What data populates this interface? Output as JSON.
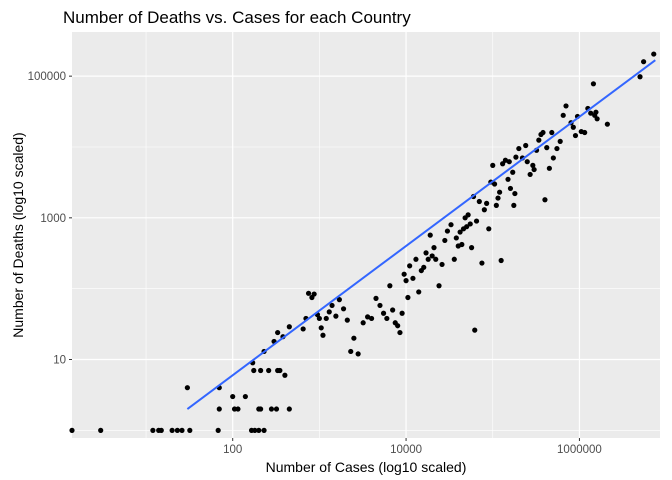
{
  "chart_data": {
    "type": "scatter",
    "title": "Number of Deaths vs. Cases for each Country",
    "xlabel": "Number of Cases (log10 scaled)",
    "ylabel": "Number of Deaths (log10 scaled)",
    "x_scale": "log10",
    "y_scale": "log10",
    "xlim": [
      1.4,
      8500000
    ],
    "ylim": [
      0.78,
      420000
    ],
    "x_ticks": [
      {
        "value": 100,
        "label": "100"
      },
      {
        "value": 10000,
        "label": "10000"
      },
      {
        "value": 1000000,
        "label": "1000000"
      }
    ],
    "y_ticks": [
      {
        "value": 10,
        "label": "10"
      },
      {
        "value": 1000,
        "label": "1000"
      },
      {
        "value": 100000,
        "label": "100000"
      }
    ],
    "grid": true,
    "background": "#EBEBEB",
    "point_color": "#000000",
    "fit_line_color": "#3366FF",
    "fit_line": {
      "x": [
        30,
        7500000
      ],
      "y": [
        2.0,
        168000
      ]
    },
    "points": [
      {
        "x": 1.4,
        "y": 1
      },
      {
        "x": 3,
        "y": 1
      },
      {
        "x": 12,
        "y": 1
      },
      {
        "x": 14,
        "y": 1
      },
      {
        "x": 15,
        "y": 1
      },
      {
        "x": 20,
        "y": 1
      },
      {
        "x": 23,
        "y": 1
      },
      {
        "x": 26,
        "y": 1
      },
      {
        "x": 32,
        "y": 1
      },
      {
        "x": 68,
        "y": 1
      },
      {
        "x": 165,
        "y": 1
      },
      {
        "x": 180,
        "y": 1
      },
      {
        "x": 200,
        "y": 1
      },
      {
        "x": 230,
        "y": 1
      },
      {
        "x": 30,
        "y": 4
      },
      {
        "x": 70,
        "y": 4
      },
      {
        "x": 70,
        "y": 2
      },
      {
        "x": 100,
        "y": 3
      },
      {
        "x": 105,
        "y": 2
      },
      {
        "x": 115,
        "y": 2
      },
      {
        "x": 140,
        "y": 3
      },
      {
        "x": 200,
        "y": 2
      },
      {
        "x": 210,
        "y": 2
      },
      {
        "x": 320,
        "y": 2
      },
      {
        "x": 450,
        "y": 2
      },
      {
        "x": 280,
        "y": 2
      },
      {
        "x": 210,
        "y": 7
      },
      {
        "x": 170,
        "y": 9
      },
      {
        "x": 175,
        "y": 7
      },
      {
        "x": 230,
        "y": 13
      },
      {
        "x": 260,
        "y": 7
      },
      {
        "x": 330,
        "y": 7
      },
      {
        "x": 350,
        "y": 7
      },
      {
        "x": 400,
        "y": 6
      },
      {
        "x": 300,
        "y": 18
      },
      {
        "x": 330,
        "y": 24
      },
      {
        "x": 380,
        "y": 21
      },
      {
        "x": 450,
        "y": 29
      },
      {
        "x": 650,
        "y": 27
      },
      {
        "x": 700,
        "y": 38
      },
      {
        "x": 750,
        "y": 86
      },
      {
        "x": 820,
        "y": 75
      },
      {
        "x": 870,
        "y": 84
      },
      {
        "x": 950,
        "y": 43
      },
      {
        "x": 1000,
        "y": 38
      },
      {
        "x": 1050,
        "y": 28
      },
      {
        "x": 1100,
        "y": 22
      },
      {
        "x": 1200,
        "y": 38
      },
      {
        "x": 1300,
        "y": 47
      },
      {
        "x": 1400,
        "y": 58
      },
      {
        "x": 1550,
        "y": 41
      },
      {
        "x": 1700,
        "y": 70
      },
      {
        "x": 1900,
        "y": 52
      },
      {
        "x": 2100,
        "y": 36
      },
      {
        "x": 2300,
        "y": 13
      },
      {
        "x": 2500,
        "y": 20
      },
      {
        "x": 2800,
        "y": 12
      },
      {
        "x": 3200,
        "y": 33
      },
      {
        "x": 3600,
        "y": 40
      },
      {
        "x": 4000,
        "y": 38
      },
      {
        "x": 4500,
        "y": 73
      },
      {
        "x": 5000,
        "y": 58
      },
      {
        "x": 5500,
        "y": 45
      },
      {
        "x": 6000,
        "y": 38
      },
      {
        "x": 6500,
        "y": 110
      },
      {
        "x": 7000,
        "y": 50
      },
      {
        "x": 7500,
        "y": 33
      },
      {
        "x": 8000,
        "y": 30
      },
      {
        "x": 8500,
        "y": 24
      },
      {
        "x": 9000,
        "y": 45
      },
      {
        "x": 9500,
        "y": 160
      },
      {
        "x": 10000,
        "y": 130
      },
      {
        "x": 10500,
        "y": 75
      },
      {
        "x": 11000,
        "y": 210
      },
      {
        "x": 12000,
        "y": 140
      },
      {
        "x": 13000,
        "y": 260
      },
      {
        "x": 14000,
        "y": 90
      },
      {
        "x": 15000,
        "y": 180
      },
      {
        "x": 16000,
        "y": 200
      },
      {
        "x": 17000,
        "y": 320
      },
      {
        "x": 18000,
        "y": 260
      },
      {
        "x": 19000,
        "y": 570
      },
      {
        "x": 20000,
        "y": 290
      },
      {
        "x": 21000,
        "y": 380
      },
      {
        "x": 22000,
        "y": 260
      },
      {
        "x": 24000,
        "y": 110
      },
      {
        "x": 26000,
        "y": 220
      },
      {
        "x": 28000,
        "y": 480
      },
      {
        "x": 30000,
        "y": 650
      },
      {
        "x": 33000,
        "y": 800
      },
      {
        "x": 36000,
        "y": 260
      },
      {
        "x": 38000,
        "y": 520
      },
      {
        "x": 40000,
        "y": 400
      },
      {
        "x": 42000,
        "y": 630
      },
      {
        "x": 44000,
        "y": 420
      },
      {
        "x": 46000,
        "y": 700
      },
      {
        "x": 48000,
        "y": 1000
      },
      {
        "x": 50000,
        "y": 750
      },
      {
        "x": 52000,
        "y": 1100
      },
      {
        "x": 55000,
        "y": 820
      },
      {
        "x": 57000,
        "y": 380
      },
      {
        "x": 60000,
        "y": 2000
      },
      {
        "x": 62000,
        "y": 26
      },
      {
        "x": 65000,
        "y": 900
      },
      {
        "x": 70000,
        "y": 1700
      },
      {
        "x": 75000,
        "y": 230
      },
      {
        "x": 80000,
        "y": 1300
      },
      {
        "x": 85000,
        "y": 1600
      },
      {
        "x": 90000,
        "y": 700
      },
      {
        "x": 95000,
        "y": 3200
      },
      {
        "x": 100000,
        "y": 5500
      },
      {
        "x": 105000,
        "y": 3000
      },
      {
        "x": 110000,
        "y": 1500
      },
      {
        "x": 115000,
        "y": 1900
      },
      {
        "x": 120000,
        "y": 2300
      },
      {
        "x": 125000,
        "y": 250
      },
      {
        "x": 130000,
        "y": 5800
      },
      {
        "x": 140000,
        "y": 6500
      },
      {
        "x": 150000,
        "y": 3500
      },
      {
        "x": 155000,
        "y": 6200
      },
      {
        "x": 160000,
        "y": 2600
      },
      {
        "x": 170000,
        "y": 4400
      },
      {
        "x": 175000,
        "y": 1500
      },
      {
        "x": 180000,
        "y": 2200
      },
      {
        "x": 185000,
        "y": 7200
      },
      {
        "x": 200000,
        "y": 9500
      },
      {
        "x": 220000,
        "y": 7000
      },
      {
        "x": 240000,
        "y": 10500
      },
      {
        "x": 250000,
        "y": 6200
      },
      {
        "x": 270000,
        "y": 4100
      },
      {
        "x": 290000,
        "y": 5500
      },
      {
        "x": 300000,
        "y": 4800
      },
      {
        "x": 320000,
        "y": 9000
      },
      {
        "x": 340000,
        "y": 12500
      },
      {
        "x": 360000,
        "y": 15000
      },
      {
        "x": 380000,
        "y": 16000
      },
      {
        "x": 400000,
        "y": 1800
      },
      {
        "x": 420000,
        "y": 9800
      },
      {
        "x": 450000,
        "y": 5000
      },
      {
        "x": 480000,
        "y": 16000
      },
      {
        "x": 500000,
        "y": 7000
      },
      {
        "x": 550000,
        "y": 9500
      },
      {
        "x": 600000,
        "y": 12000
      },
      {
        "x": 650000,
        "y": 28000
      },
      {
        "x": 700000,
        "y": 38000
      },
      {
        "x": 800000,
        "y": 22000
      },
      {
        "x": 850000,
        "y": 19000
      },
      {
        "x": 900000,
        "y": 14500
      },
      {
        "x": 950000,
        "y": 27000
      },
      {
        "x": 1050000,
        "y": 16500
      },
      {
        "x": 1150000,
        "y": 16000
      },
      {
        "x": 1250000,
        "y": 35000
      },
      {
        "x": 1350000,
        "y": 30000
      },
      {
        "x": 1450000,
        "y": 78000
      },
      {
        "x": 1500000,
        "y": 28000
      },
      {
        "x": 1550000,
        "y": 31000
      },
      {
        "x": 1600000,
        "y": 25000
      },
      {
        "x": 2100000,
        "y": 21000
      },
      {
        "x": 5000000,
        "y": 98000
      },
      {
        "x": 5500000,
        "y": 160000
      },
      {
        "x": 7200000,
        "y": 205000
      }
    ]
  }
}
